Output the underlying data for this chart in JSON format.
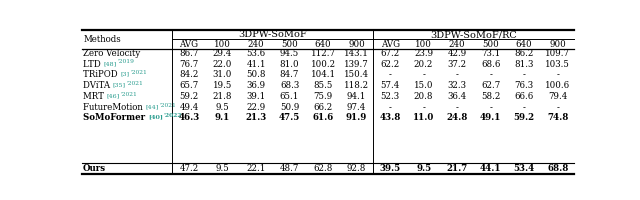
{
  "sub_headers": [
    "AVG",
    "100",
    "240",
    "500",
    "640",
    "900",
    "AVG",
    "100",
    "240",
    "500",
    "640",
    "900"
  ],
  "method_labels": [
    {
      "text": "Zero Velocity",
      "ref": "",
      "year": ""
    },
    {
      "text": "LTD ",
      "ref": "[48]",
      "year": "2019"
    },
    {
      "text": "TRiPOD ",
      "ref": "[3]",
      "year": "2021"
    },
    {
      "text": "DViTA ",
      "ref": "[35]",
      "year": "2021"
    },
    {
      "text": "MRT ",
      "ref": "[46]",
      "year": "2021"
    },
    {
      "text": "FutureMotion ",
      "ref": "[44]",
      "year": "2021"
    },
    {
      "text": "SoMoFormer ",
      "ref": "[40]",
      "year": "2022"
    },
    {
      "text": "Ours",
      "ref": "",
      "year": ""
    }
  ],
  "data": [
    [
      86.7,
      29.4,
      53.6,
      94.5,
      112.7,
      143.1,
      67.2,
      23.9,
      42.9,
      73.1,
      86.2,
      109.7
    ],
    [
      76.7,
      22.0,
      41.1,
      81.0,
      100.2,
      139.7,
      62.2,
      20.2,
      37.2,
      68.6,
      81.3,
      103.5
    ],
    [
      84.2,
      31.0,
      50.8,
      84.7,
      104.1,
      150.4,
      null,
      null,
      null,
      null,
      null,
      null
    ],
    [
      65.7,
      19.5,
      36.9,
      68.3,
      85.5,
      118.2,
      57.4,
      15.0,
      32.3,
      62.7,
      76.3,
      100.6
    ],
    [
      59.2,
      21.8,
      39.1,
      65.1,
      75.9,
      94.1,
      52.3,
      20.8,
      36.4,
      58.2,
      66.6,
      79.4
    ],
    [
      49.4,
      9.5,
      22.9,
      50.9,
      66.2,
      97.4,
      null,
      null,
      null,
      null,
      null,
      null
    ],
    [
      46.3,
      9.1,
      21.3,
      47.5,
      61.6,
      91.9,
      43.8,
      11.0,
      24.8,
      49.1,
      59.2,
      74.8
    ],
    [
      47.2,
      9.5,
      22.1,
      48.7,
      62.8,
      92.8,
      39.5,
      9.5,
      21.7,
      44.1,
      53.4,
      68.8
    ]
  ],
  "somof_bold_row": 6,
  "ours_row": 7,
  "ours_bold_cols": [
    6,
    7,
    8,
    9,
    10,
    11
  ],
  "bg_color": "#ffffff",
  "text_color": "#000000",
  "ref_color": "#2a9d8f",
  "group1_label": "3DPW-SoMoF",
  "group2_label": "3DPW-SoMoF/RC",
  "methods_label": "Methods",
  "fs_data": 6.2,
  "fs_header": 7.0,
  "fs_ref": 4.6,
  "fs_year": 4.3
}
